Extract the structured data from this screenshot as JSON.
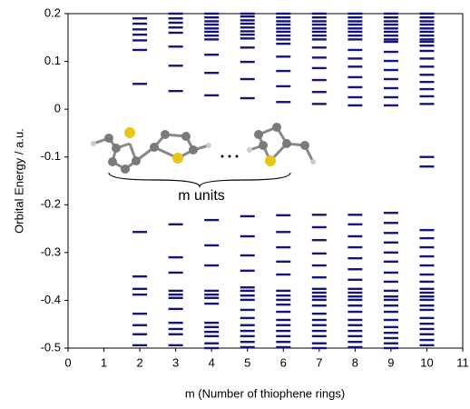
{
  "chart_data": {
    "type": "energy-levels",
    "y_label": "Orbital Energy / a.u.",
    "x_label": "m (Number of thiophene rings)",
    "annotation": "m  units",
    "color": "#14147a",
    "xlim": [
      0,
      11
    ],
    "xticks": [
      0,
      1,
      2,
      3,
      4,
      5,
      6,
      7,
      8,
      9,
      10,
      11
    ],
    "ylim": [
      -0.5,
      0.2
    ],
    "yticks": [
      0.2,
      0.1,
      0,
      -0.1,
      -0.2,
      -0.3,
      -0.4,
      -0.5
    ],
    "levels": [
      {
        "m": 2,
        "values": [
          0.19,
          0.179,
          0.167,
          0.156,
          0.144,
          0.124,
          0.053,
          -0.257,
          -0.35,
          -0.376,
          -0.388,
          -0.428,
          -0.452,
          -0.471,
          -0.494
        ]
      },
      {
        "m": 3,
        "values": [
          0.2,
          0.19,
          0.181,
          0.171,
          0.16,
          0.131,
          0.091,
          0.038,
          -0.241,
          -0.31,
          -0.342,
          -0.38,
          -0.388,
          -0.395,
          -0.418,
          -0.447,
          -0.46,
          -0.471,
          -0.494
        ]
      },
      {
        "m": 4,
        "values": [
          0.2,
          0.192,
          0.184,
          0.177,
          0.169,
          0.162,
          0.154,
          0.146,
          0.114,
          0.076,
          0.029,
          -0.232,
          -0.285,
          -0.327,
          -0.38,
          -0.388,
          -0.395,
          -0.407,
          -0.447,
          -0.456,
          -0.466,
          -0.475,
          -0.49,
          -0.5
        ]
      },
      {
        "m": 5,
        "values": [
          0.2,
          0.194,
          0.186,
          0.179,
          0.171,
          0.163,
          0.156,
          0.148,
          0.129,
          0.099,
          0.063,
          0.023,
          -0.224,
          -0.266,
          -0.306,
          -0.338,
          -0.373,
          -0.38,
          -0.39,
          -0.399,
          -0.42,
          -0.437,
          -0.452,
          -0.464,
          -0.475,
          -0.487,
          -0.498
        ]
      },
      {
        "m": 6,
        "values": [
          0.2,
          0.192,
          0.184,
          0.177,
          0.169,
          0.162,
          0.154,
          0.146,
          0.137,
          0.11,
          0.08,
          0.048,
          0.015,
          -0.222,
          -0.257,
          -0.289,
          -0.319,
          -0.346,
          -0.38,
          -0.39,
          -0.399,
          -0.409,
          -0.424,
          -0.441,
          -0.452,
          -0.464,
          -0.475,
          -0.487,
          -0.498
        ]
      },
      {
        "m": 7,
        "values": [
          0.2,
          0.192,
          0.184,
          0.177,
          0.169,
          0.162,
          0.154,
          0.146,
          0.129,
          0.108,
          0.086,
          0.061,
          0.036,
          0.011,
          -0.221,
          -0.247,
          -0.274,
          -0.302,
          -0.327,
          -0.352,
          -0.376,
          -0.384,
          -0.392,
          -0.399,
          -0.411,
          -0.428,
          -0.441,
          -0.452,
          -0.464,
          -0.475,
          -0.49,
          -0.5
        ]
      },
      {
        "m": 8,
        "values": [
          0.2,
          0.192,
          0.184,
          0.177,
          0.169,
          0.162,
          0.154,
          0.146,
          0.124,
          0.106,
          0.089,
          0.067,
          0.046,
          0.025,
          0.008,
          -0.221,
          -0.241,
          -0.266,
          -0.289,
          -0.312,
          -0.335,
          -0.357,
          -0.376,
          -0.384,
          -0.392,
          -0.399,
          -0.411,
          -0.424,
          -0.441,
          -0.452,
          -0.464,
          -0.475,
          -0.487,
          -0.498
        ]
      },
      {
        "m": 9,
        "values": [
          0.2,
          0.192,
          0.184,
          0.177,
          0.169,
          0.162,
          0.154,
          0.146,
          0.141,
          0.12,
          0.101,
          0.082,
          0.063,
          0.044,
          0.025,
          0.008,
          -0.217,
          -0.238,
          -0.259,
          -0.279,
          -0.3,
          -0.319,
          -0.342,
          -0.361,
          -0.38,
          -0.392,
          -0.399,
          -0.411,
          -0.424,
          -0.441,
          -0.456,
          -0.468,
          -0.479,
          -0.49,
          -0.5
        ]
      },
      {
        "m": 10,
        "values": [
          0.2,
          0.192,
          0.184,
          0.177,
          0.169,
          0.162,
          0.154,
          0.146,
          0.141,
          0.133,
          0.122,
          0.106,
          0.089,
          0.072,
          0.057,
          0.042,
          0.027,
          0.011,
          -0.1,
          -0.12,
          -0.253,
          -0.27,
          -0.289,
          -0.308,
          -0.327,
          -0.346,
          -0.361,
          -0.376,
          -0.384,
          -0.392,
          -0.399,
          -0.411,
          -0.42,
          -0.437,
          -0.449,
          -0.46,
          -0.471,
          -0.483,
          -0.494
        ]
      }
    ]
  }
}
